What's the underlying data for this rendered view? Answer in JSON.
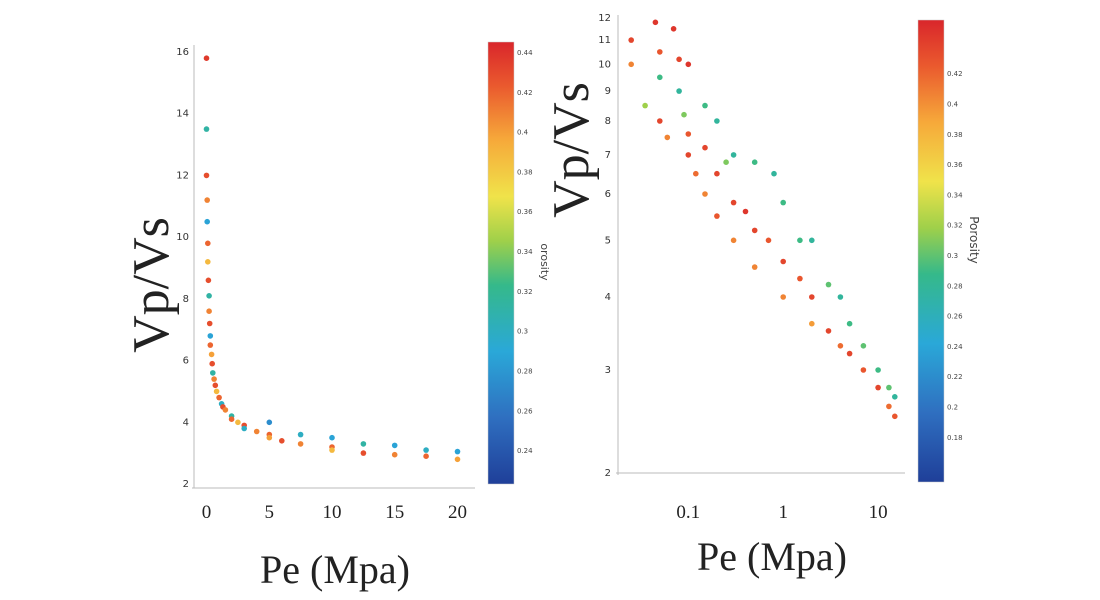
{
  "chart_data": [
    {
      "type": "scatter",
      "xlabel": "Pe (Mpa)",
      "ylabel": "Vp/Vs",
      "colorbar_label": "Porosity",
      "colorbar_label_visible": "orosity",
      "xlim": [
        -1,
        21
      ],
      "ylim": [
        2,
        16
      ],
      "x_ticks": [
        "0",
        "5",
        "10",
        "15",
        "20"
      ],
      "y_ticks": [
        "2",
        "4",
        "6",
        "8",
        "10",
        "12",
        "14",
        "16"
      ],
      "colorbar_ticks": [
        "0.44",
        "0.42",
        "0.4",
        "0.38",
        "0.36",
        "0.34",
        "0.32",
        "0.3",
        "0.28",
        "0.26",
        "0.24"
      ],
      "colorbar_range": [
        0.23,
        0.44
      ],
      "colormap": [
        "#1f3f99",
        "#2f6fc0",
        "#2aa8d8",
        "#35b98a",
        "#9fd04a",
        "#f0e34a",
        "#f6a83a",
        "#ea5a2e",
        "#d9262b"
      ],
      "points": [
        {
          "x": 0,
          "y": 15.8,
          "c": 0.43
        },
        {
          "x": 0,
          "y": 13.5,
          "c": 0.3
        },
        {
          "x": 0,
          "y": 12.0,
          "c": 0.42
        },
        {
          "x": 0.05,
          "y": 11.2,
          "c": 0.4
        },
        {
          "x": 0.05,
          "y": 10.5,
          "c": 0.28
        },
        {
          "x": 0.1,
          "y": 9.8,
          "c": 0.41
        },
        {
          "x": 0.1,
          "y": 9.2,
          "c": 0.38
        },
        {
          "x": 0.15,
          "y": 8.6,
          "c": 0.42
        },
        {
          "x": 0.2,
          "y": 8.1,
          "c": 0.3
        },
        {
          "x": 0.2,
          "y": 7.6,
          "c": 0.4
        },
        {
          "x": 0.25,
          "y": 7.2,
          "c": 0.42
        },
        {
          "x": 0.3,
          "y": 6.8,
          "c": 0.28
        },
        {
          "x": 0.3,
          "y": 6.5,
          "c": 0.41
        },
        {
          "x": 0.4,
          "y": 6.2,
          "c": 0.39
        },
        {
          "x": 0.45,
          "y": 5.9,
          "c": 0.42
        },
        {
          "x": 0.5,
          "y": 5.6,
          "c": 0.3
        },
        {
          "x": 0.6,
          "y": 5.4,
          "c": 0.4
        },
        {
          "x": 0.7,
          "y": 5.2,
          "c": 0.42
        },
        {
          "x": 0.8,
          "y": 5.0,
          "c": 0.38
        },
        {
          "x": 1.0,
          "y": 4.8,
          "c": 0.41
        },
        {
          "x": 1.2,
          "y": 4.6,
          "c": 0.29
        },
        {
          "x": 1.3,
          "y": 4.5,
          "c": 0.42
        },
        {
          "x": 1.5,
          "y": 4.4,
          "c": 0.4
        },
        {
          "x": 2.0,
          "y": 4.2,
          "c": 0.3
        },
        {
          "x": 2.0,
          "y": 4.1,
          "c": 0.41
        },
        {
          "x": 2.5,
          "y": 4.0,
          "c": 0.38
        },
        {
          "x": 3.0,
          "y": 3.9,
          "c": 0.42
        },
        {
          "x": 3.0,
          "y": 3.8,
          "c": 0.29
        },
        {
          "x": 4.0,
          "y": 3.7,
          "c": 0.4
        },
        {
          "x": 5.0,
          "y": 3.6,
          "c": 0.41
        },
        {
          "x": 5.0,
          "y": 4.0,
          "c": 0.27
        },
        {
          "x": 5.0,
          "y": 3.5,
          "c": 0.39
        },
        {
          "x": 6.0,
          "y": 3.4,
          "c": 0.42
        },
        {
          "x": 7.5,
          "y": 3.3,
          "c": 0.4
        },
        {
          "x": 7.5,
          "y": 3.6,
          "c": 0.29
        },
        {
          "x": 10.0,
          "y": 3.2,
          "c": 0.41
        },
        {
          "x": 10.0,
          "y": 3.5,
          "c": 0.28
        },
        {
          "x": 10.0,
          "y": 3.1,
          "c": 0.38
        },
        {
          "x": 12.5,
          "y": 3.0,
          "c": 0.42
        },
        {
          "x": 12.5,
          "y": 3.3,
          "c": 0.3
        },
        {
          "x": 15.0,
          "y": 2.95,
          "c": 0.4
        },
        {
          "x": 15.0,
          "y": 3.25,
          "c": 0.28
        },
        {
          "x": 17.5,
          "y": 2.9,
          "c": 0.41
        },
        {
          "x": 17.5,
          "y": 3.1,
          "c": 0.29
        },
        {
          "x": 20.0,
          "y": 2.8,
          "c": 0.39
        },
        {
          "x": 20.0,
          "y": 3.05,
          "c": 0.28
        }
      ]
    },
    {
      "type": "scatter",
      "xlabel": "Pe (Mpa)",
      "ylabel": "Vp/Vs",
      "colorbar_label": "Porosity",
      "x_scale": "log",
      "y_scale": "log",
      "xlim": [
        0.02,
        17
      ],
      "ylim": [
        2,
        12
      ],
      "x_ticks": [
        "0.1",
        "1",
        "10"
      ],
      "y_ticks": [
        "2",
        "3",
        "4",
        "5",
        "6",
        "7",
        "8",
        "9",
        "10",
        "11",
        "12"
      ],
      "colorbar_ticks": [
        "0.42",
        "0.4",
        "0.38",
        "0.36",
        "0.34",
        "0.32",
        "0.3",
        "0.28",
        "0.26",
        "0.24",
        "0.22",
        "0.2",
        "0.18"
      ],
      "colorbar_range": [
        0.17,
        0.43
      ],
      "colormap": [
        "#1f3f99",
        "#2f6fc0",
        "#2aa8d8",
        "#35b98a",
        "#9fd04a",
        "#f0e34a",
        "#f6a83a",
        "#ea5a2e",
        "#d9262b"
      ],
      "points": [
        {
          "x": 0.025,
          "y": 11.0,
          "c": 0.41
        },
        {
          "x": 0.025,
          "y": 10.0,
          "c": 0.38
        },
        {
          "x": 0.035,
          "y": 8.5,
          "c": 0.3
        },
        {
          "x": 0.045,
          "y": 11.8,
          "c": 0.42
        },
        {
          "x": 0.05,
          "y": 10.5,
          "c": 0.4
        },
        {
          "x": 0.05,
          "y": 9.5,
          "c": 0.27
        },
        {
          "x": 0.05,
          "y": 8.0,
          "c": 0.41
        },
        {
          "x": 0.06,
          "y": 7.5,
          "c": 0.38
        },
        {
          "x": 0.07,
          "y": 11.5,
          "c": 0.42
        },
        {
          "x": 0.08,
          "y": 10.2,
          "c": 0.41
        },
        {
          "x": 0.08,
          "y": 9.0,
          "c": 0.26
        },
        {
          "x": 0.09,
          "y": 8.2,
          "c": 0.29
        },
        {
          "x": 0.1,
          "y": 7.6,
          "c": 0.4
        },
        {
          "x": 0.1,
          "y": 10.0,
          "c": 0.42
        },
        {
          "x": 0.1,
          "y": 7.0,
          "c": 0.41
        },
        {
          "x": 0.12,
          "y": 6.5,
          "c": 0.39
        },
        {
          "x": 0.15,
          "y": 8.5,
          "c": 0.27
        },
        {
          "x": 0.15,
          "y": 7.2,
          "c": 0.41
        },
        {
          "x": 0.15,
          "y": 6.0,
          "c": 0.38
        },
        {
          "x": 0.2,
          "y": 8.0,
          "c": 0.26
        },
        {
          "x": 0.2,
          "y": 6.5,
          "c": 0.41
        },
        {
          "x": 0.2,
          "y": 5.5,
          "c": 0.4
        },
        {
          "x": 0.25,
          "y": 6.8,
          "c": 0.29
        },
        {
          "x": 0.3,
          "y": 7.0,
          "c": 0.26
        },
        {
          "x": 0.3,
          "y": 5.8,
          "c": 0.41
        },
        {
          "x": 0.3,
          "y": 5.0,
          "c": 0.38
        },
        {
          "x": 0.4,
          "y": 5.6,
          "c": 0.42
        },
        {
          "x": 0.5,
          "y": 6.8,
          "c": 0.27
        },
        {
          "x": 0.5,
          "y": 5.2,
          "c": 0.41
        },
        {
          "x": 0.5,
          "y": 4.5,
          "c": 0.38
        },
        {
          "x": 0.7,
          "y": 5.0,
          "c": 0.4
        },
        {
          "x": 0.8,
          "y": 6.5,
          "c": 0.26
        },
        {
          "x": 1.0,
          "y": 5.8,
          "c": 0.27
        },
        {
          "x": 1.0,
          "y": 4.6,
          "c": 0.41
        },
        {
          "x": 1.0,
          "y": 4.0,
          "c": 0.38
        },
        {
          "x": 1.5,
          "y": 4.3,
          "c": 0.4
        },
        {
          "x": 1.5,
          "y": 5.0,
          "c": 0.27
        },
        {
          "x": 2.0,
          "y": 4.0,
          "c": 0.41
        },
        {
          "x": 2.0,
          "y": 5.0,
          "c": 0.26
        },
        {
          "x": 2.0,
          "y": 3.6,
          "c": 0.37
        },
        {
          "x": 3.0,
          "y": 4.2,
          "c": 0.28
        },
        {
          "x": 3.0,
          "y": 3.5,
          "c": 0.41
        },
        {
          "x": 4.0,
          "y": 4.0,
          "c": 0.26
        },
        {
          "x": 4.0,
          "y": 3.3,
          "c": 0.39
        },
        {
          "x": 5.0,
          "y": 3.2,
          "c": 0.41
        },
        {
          "x": 5.0,
          "y": 3.6,
          "c": 0.27
        },
        {
          "x": 7.0,
          "y": 3.0,
          "c": 0.4
        },
        {
          "x": 7.0,
          "y": 3.3,
          "c": 0.28
        },
        {
          "x": 10.0,
          "y": 2.8,
          "c": 0.41
        },
        {
          "x": 10.0,
          "y": 3.0,
          "c": 0.27
        },
        {
          "x": 13.0,
          "y": 2.6,
          "c": 0.39
        },
        {
          "x": 13.0,
          "y": 2.8,
          "c": 0.28
        },
        {
          "x": 15.0,
          "y": 2.5,
          "c": 0.4
        },
        {
          "x": 15.0,
          "y": 2.7,
          "c": 0.26
        }
      ]
    }
  ]
}
